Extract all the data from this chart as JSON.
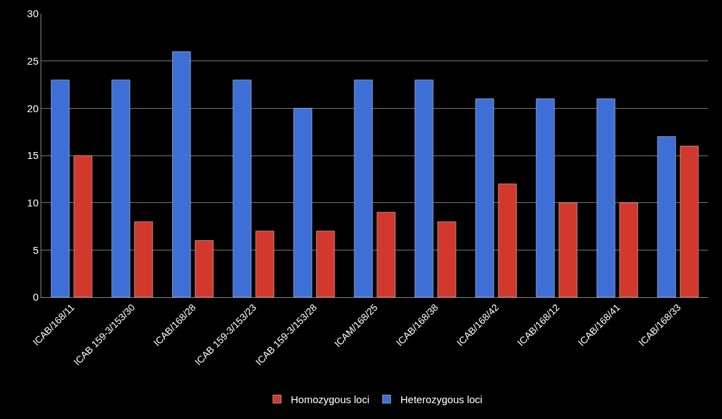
{
  "chart_data": {
    "type": "bar",
    "categories": [
      "ICAB/168/11",
      "ICAB 159-3/153/30",
      "ICAB/168/28",
      "ICAB 159-3/153/23",
      "ICAB 159-3/153/28",
      "ICAM/168/25",
      "ICAB/168/38",
      "ICAB/168/42",
      "ICAB/168/12",
      "ICAB/168/41",
      "ICAB/168/33"
    ],
    "series": [
      {
        "name": "Heterozygous loci",
        "color": "#3d6fd6",
        "values": [
          23,
          23,
          26,
          23,
          20,
          23,
          23,
          21,
          21,
          21,
          17
        ]
      },
      {
        "name": "Homozygous loci",
        "color": "#d2392c",
        "values": [
          15,
          8,
          6,
          7,
          7,
          9,
          8,
          12,
          10,
          10,
          16
        ]
      }
    ],
    "ylim": [
      0,
      30
    ],
    "yticks": [
      0,
      5,
      10,
      15,
      20,
      25,
      30
    ],
    "grid": "y",
    "legend": "bottom"
  }
}
